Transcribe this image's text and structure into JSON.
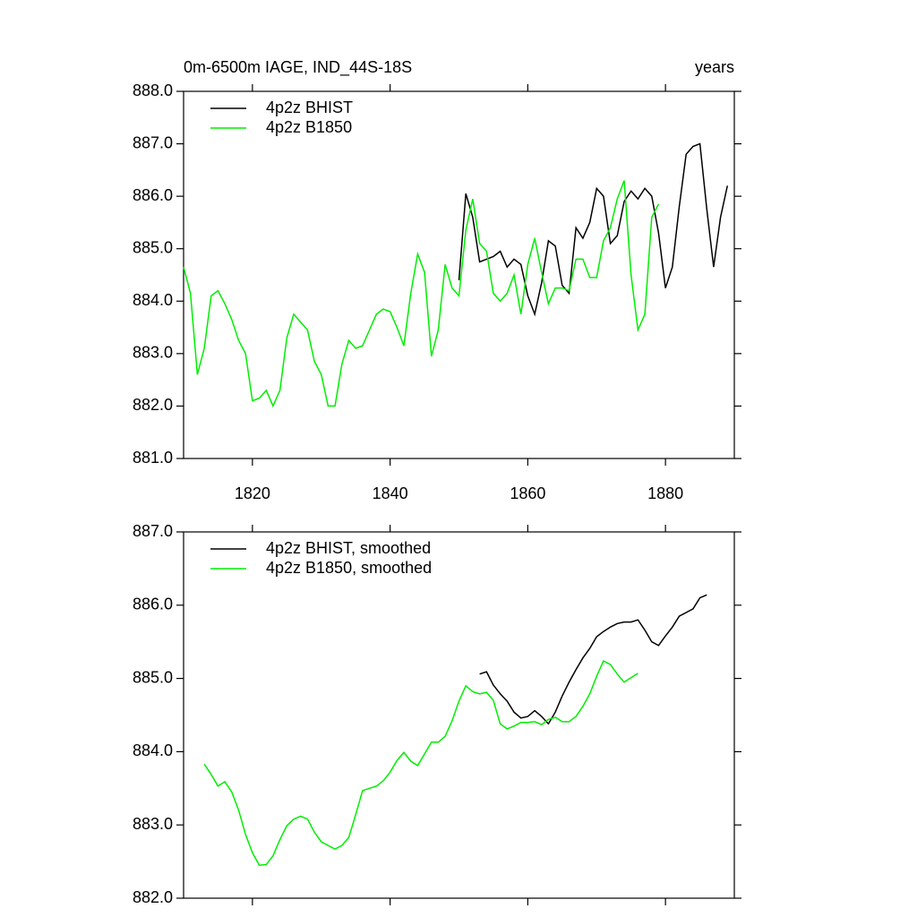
{
  "chart_data": [
    {
      "type": "line",
      "title": "0m-6500m IAGE, IND_44S-18S",
      "subtitle": "years",
      "xlim": [
        1810,
        1890
      ],
      "xticks": [
        1820,
        1840,
        1860,
        1880
      ],
      "ylim": [
        881,
        888
      ],
      "yticks": [
        {
          "value": 881,
          "label": "881.0"
        },
        {
          "value": 882,
          "label": "882.0"
        },
        {
          "value": 883,
          "label": "883.0"
        },
        {
          "value": 884,
          "label": "884.0"
        },
        {
          "value": 885,
          "label": "885.0"
        },
        {
          "value": 886,
          "label": "886.0"
        },
        {
          "value": 887,
          "label": "887.0"
        },
        {
          "value": 888,
          "label": "888.0"
        }
      ],
      "legend": "upper left",
      "series": [
        {
          "name": "4p2z BHIST",
          "color": "#000000",
          "x": [
            1850,
            1851,
            1852,
            1853,
            1854,
            1855,
            1856,
            1857,
            1858,
            1859,
            1860,
            1861,
            1862,
            1863,
            1864,
            1865,
            1866,
            1867,
            1868,
            1869,
            1870,
            1871,
            1872,
            1873,
            1874,
            1875,
            1876,
            1877,
            1878,
            1879,
            1880,
            1881,
            1882,
            1883,
            1884,
            1885,
            1886,
            1887,
            1888,
            1889
          ],
          "values": [
            884.4,
            886.05,
            885.6,
            884.75,
            884.8,
            884.85,
            884.95,
            884.65,
            884.8,
            884.7,
            884.1,
            883.75,
            884.35,
            885.15,
            885.05,
            884.3,
            884.15,
            885.4,
            885.2,
            885.5,
            886.15,
            886.0,
            885.1,
            885.25,
            885.9,
            886.1,
            885.95,
            886.15,
            886.0,
            885.3,
            884.25,
            884.65,
            885.8,
            886.8,
            886.95,
            887.0,
            885.75,
            884.65,
            885.6,
            886.2
          ]
        },
        {
          "name": "4p2z B1850",
          "color": "#00ee00",
          "x": [
            1810,
            1811,
            1812,
            1813,
            1814,
            1815,
            1816,
            1817,
            1818,
            1819,
            1820,
            1821,
            1822,
            1823,
            1824,
            1825,
            1826,
            1827,
            1828,
            1829,
            1830,
            1831,
            1832,
            1833,
            1834,
            1835,
            1836,
            1837,
            1838,
            1839,
            1840,
            1841,
            1842,
            1843,
            1844,
            1845,
            1846,
            1847,
            1848,
            1849,
            1850,
            1851,
            1852,
            1853,
            1854,
            1855,
            1856,
            1857,
            1858,
            1859,
            1860,
            1861,
            1862,
            1863,
            1864,
            1865,
            1866,
            1867,
            1868,
            1869,
            1870,
            1871,
            1872,
            1873,
            1874,
            1875,
            1876,
            1877,
            1878,
            1879
          ],
          "values": [
            884.65,
            884.15,
            882.6,
            883.1,
            884.1,
            884.2,
            883.95,
            883.65,
            883.25,
            883.0,
            882.1,
            882.15,
            882.3,
            882.0,
            882.3,
            883.3,
            883.75,
            883.6,
            883.45,
            882.85,
            882.6,
            882.0,
            882.0,
            882.8,
            883.25,
            883.1,
            883.15,
            883.45,
            883.75,
            883.85,
            883.8,
            883.5,
            883.15,
            884.15,
            884.9,
            884.55,
            882.95,
            883.45,
            884.7,
            884.25,
            884.1,
            885.35,
            885.95,
            885.1,
            884.95,
            884.15,
            884.0,
            884.15,
            884.5,
            883.75,
            884.7,
            885.2,
            884.55,
            883.95,
            884.25,
            884.25,
            884.2,
            884.8,
            884.8,
            884.45,
            884.45,
            885.15,
            885.4,
            885.95,
            886.3,
            884.5,
            883.45,
            883.75,
            885.6,
            885.85
          ]
        }
      ]
    },
    {
      "type": "line",
      "xlim": [
        1810,
        1890
      ],
      "xticks": [
        1820,
        1840,
        1860,
        1880
      ],
      "ylim": [
        882,
        887
      ],
      "yticks": [
        {
          "value": 882,
          "label": "882.0"
        },
        {
          "value": 883,
          "label": "883.0"
        },
        {
          "value": 884,
          "label": "884.0"
        },
        {
          "value": 885,
          "label": "885.0"
        },
        {
          "value": 886,
          "label": "886.0"
        },
        {
          "value": 887,
          "label": "887.0"
        }
      ],
      "legend": "upper left",
      "series": [
        {
          "name": "4p2z BHIST, smoothed",
          "color": "#000000",
          "x": [
            1853,
            1854,
            1855,
            1856,
            1857,
            1858,
            1859,
            1860,
            1861,
            1862,
            1863,
            1864,
            1865,
            1866,
            1867,
            1868,
            1869,
            1870,
            1871,
            1872,
            1873,
            1874,
            1875,
            1876,
            1877,
            1878,
            1879,
            1880,
            1881,
            1882,
            1883,
            1884,
            1885,
            1886
          ],
          "values": [
            885.06,
            885.09,
            884.91,
            884.79,
            884.69,
            884.54,
            884.46,
            884.48,
            884.56,
            884.48,
            884.38,
            884.54,
            884.76,
            884.95,
            885.12,
            885.28,
            885.41,
            885.57,
            885.64,
            885.7,
            885.75,
            885.77,
            885.77,
            885.8,
            885.66,
            885.5,
            885.45,
            885.58,
            885.7,
            885.85,
            885.9,
            885.95,
            886.1,
            886.14
          ]
        },
        {
          "name": "4p2z B1850, smoothed",
          "color": "#00ee00",
          "x": [
            1813,
            1814,
            1815,
            1816,
            1817,
            1818,
            1819,
            1820,
            1821,
            1822,
            1823,
            1824,
            1825,
            1826,
            1827,
            1828,
            1829,
            1830,
            1831,
            1832,
            1833,
            1834,
            1835,
            1836,
            1837,
            1838,
            1839,
            1840,
            1841,
            1842,
            1843,
            1844,
            1845,
            1846,
            1847,
            1848,
            1849,
            1850,
            1851,
            1852,
            1853,
            1854,
            1855,
            1856,
            1857,
            1858,
            1859,
            1860,
            1861,
            1862,
            1863,
            1864,
            1865,
            1866,
            1867,
            1868,
            1869,
            1870,
            1871,
            1872,
            1873,
            1874,
            1875,
            1876
          ],
          "values": [
            883.83,
            883.69,
            883.53,
            883.59,
            883.45,
            883.2,
            882.87,
            882.62,
            882.45,
            882.46,
            882.58,
            882.8,
            882.99,
            883.08,
            883.12,
            883.08,
            882.9,
            882.77,
            882.72,
            882.67,
            882.72,
            882.83,
            883.14,
            883.47,
            883.5,
            883.53,
            883.6,
            883.72,
            883.88,
            883.99,
            883.87,
            883.81,
            883.97,
            884.13,
            884.13,
            884.21,
            884.42,
            884.69,
            884.9,
            884.82,
            884.79,
            884.81,
            884.7,
            884.38,
            884.31,
            884.35,
            884.4,
            884.4,
            884.41,
            884.37,
            884.44,
            884.47,
            884.41,
            884.41,
            884.48,
            884.62,
            884.79,
            885.03,
            885.24,
            885.19,
            885.06,
            884.95,
            885.01,
            885.07
          ]
        }
      ]
    }
  ]
}
